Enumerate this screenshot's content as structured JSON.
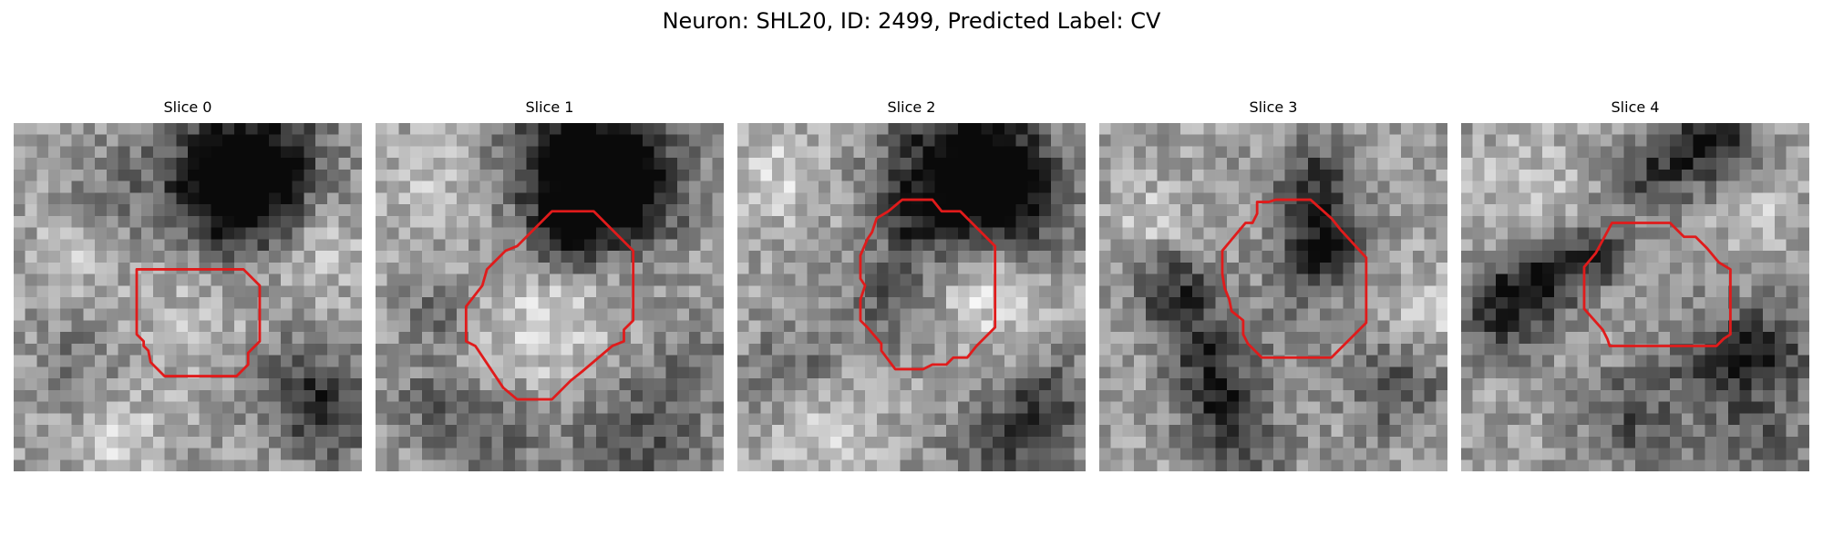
{
  "figure": {
    "title": "Neuron: SHL20, ID: 2499, Predicted Label: CV"
  },
  "colors": {
    "outline": "#e01b1b",
    "background": "#ffffff"
  },
  "panels": [
    {
      "title": "Slice 0"
    },
    {
      "title": "Slice 1"
    },
    {
      "title": "Slice 2"
    },
    {
      "title": "Slice 3"
    },
    {
      "title": "Slice 4"
    }
  ]
}
